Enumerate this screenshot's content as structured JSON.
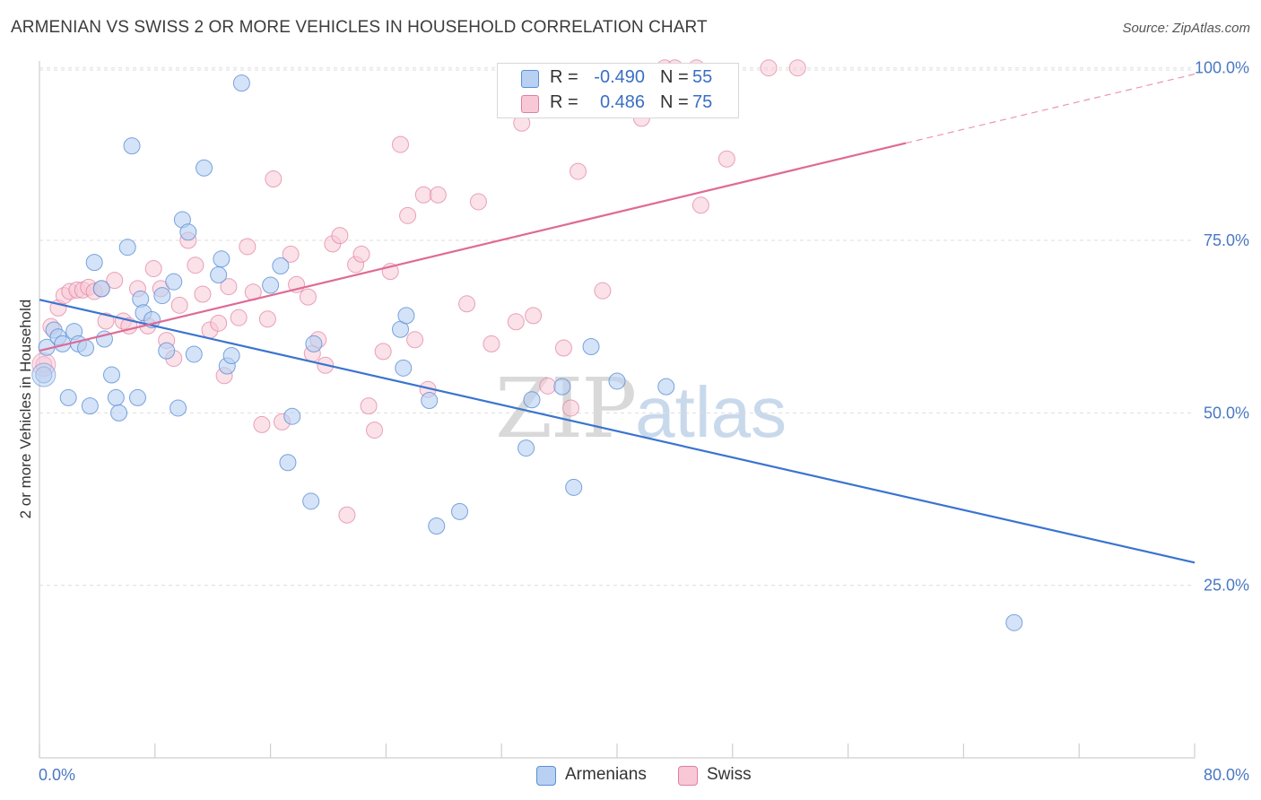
{
  "title": "ARMENIAN VS SWISS 2 OR MORE VEHICLES IN HOUSEHOLD CORRELATION CHART",
  "source": "Source: ZipAtlas.com",
  "watermark": {
    "part1": "ZIP",
    "part2": "atlas"
  },
  "legend": {
    "rows": [
      {
        "r_label": "R =",
        "r_value": "-0.490",
        "n_label": "N =",
        "n_value": "55"
      },
      {
        "r_label": "R =",
        "r_value": "0.486",
        "n_label": "N =",
        "n_value": "75"
      }
    ]
  },
  "bottom_legend": [
    "Armenians",
    "Swiss"
  ],
  "colors": {
    "armenians_fill": "#b8d0f2",
    "armenians_stroke": "#5b8fd6",
    "armenians_line": "#3a74d0",
    "swiss_fill": "#f8c8d6",
    "swiss_stroke": "#e07ea0",
    "swiss_line": "#e06a94",
    "grid": "#dddddd",
    "tick_label": "#4a78c2"
  },
  "chart_data": {
    "type": "scatter",
    "title": "ARMENIAN VS SWISS 2 OR MORE VEHICLES IN HOUSEHOLD CORRELATION CHART",
    "xlabel": "",
    "ylabel": "2 or more Vehicles in Household",
    "xlim": [
      0,
      80
    ],
    "ylim": [
      0,
      101
    ],
    "x_tick_labels": [
      "0.0%",
      "80.0%"
    ],
    "y_ticks": [
      25,
      50,
      75,
      100
    ],
    "y_tick_labels": [
      "25.0%",
      "50.0%",
      "75.0%",
      "100.0%"
    ],
    "grid": true,
    "legend_position": "top-center",
    "series": [
      {
        "name": "Armenians",
        "r": -0.49,
        "n": 55,
        "trend": {
          "x": [
            0,
            80
          ],
          "y": [
            66.4,
            28.3
          ]
        },
        "points": [
          [
            0.3,
            55.5
          ],
          [
            0.5,
            59.5
          ],
          [
            1.0,
            62.0
          ],
          [
            1.3,
            61.0
          ],
          [
            1.6,
            60.0
          ],
          [
            2.0,
            52.2
          ],
          [
            2.4,
            61.8
          ],
          [
            2.7,
            60.0
          ],
          [
            3.2,
            59.4
          ],
          [
            3.5,
            51.0
          ],
          [
            3.8,
            71.8
          ],
          [
            4.3,
            68.0
          ],
          [
            4.5,
            60.7
          ],
          [
            5.0,
            55.5
          ],
          [
            5.3,
            52.2
          ],
          [
            5.5,
            50.0
          ],
          [
            6.1,
            74.0
          ],
          [
            6.4,
            88.7
          ],
          [
            6.8,
            52.2
          ],
          [
            7.0,
            66.5
          ],
          [
            7.2,
            64.5
          ],
          [
            7.8,
            63.5
          ],
          [
            8.5,
            67.0
          ],
          [
            8.8,
            59.0
          ],
          [
            9.3,
            69.0
          ],
          [
            9.6,
            50.7
          ],
          [
            9.9,
            78.0
          ],
          [
            10.3,
            76.2
          ],
          [
            10.7,
            58.5
          ],
          [
            11.4,
            85.5
          ],
          [
            12.4,
            70.0
          ],
          [
            12.6,
            72.3
          ],
          [
            13.0,
            56.8
          ],
          [
            13.3,
            58.3
          ],
          [
            14.0,
            97.8
          ],
          [
            16.0,
            68.5
          ],
          [
            16.7,
            71.3
          ],
          [
            17.2,
            42.8
          ],
          [
            17.5,
            49.5
          ],
          [
            18.8,
            37.2
          ],
          [
            19.0,
            60.0
          ],
          [
            25.0,
            62.1
          ],
          [
            25.2,
            56.5
          ],
          [
            25.4,
            64.1
          ],
          [
            27.0,
            51.8
          ],
          [
            27.5,
            33.6
          ],
          [
            29.1,
            35.7
          ],
          [
            33.7,
            44.9
          ],
          [
            34.1,
            51.9
          ],
          [
            36.2,
            53.8
          ],
          [
            37.0,
            39.2
          ],
          [
            38.2,
            59.6
          ],
          [
            40.0,
            54.6
          ],
          [
            43.4,
            53.8
          ],
          [
            67.5,
            19.6
          ]
        ]
      },
      {
        "name": "Swiss",
        "r": 0.486,
        "n": 75,
        "trend": {
          "x": [
            0,
            60
          ],
          "y": [
            59.0,
            89.1
          ]
        },
        "trend_dashed": {
          "x": [
            60,
            80
          ],
          "y": [
            89.1,
            99.1
          ]
        },
        "points": [
          [
            0.3,
            57.0
          ],
          [
            0.8,
            62.5
          ],
          [
            1.3,
            65.2
          ],
          [
            1.7,
            67.0
          ],
          [
            2.1,
            67.6
          ],
          [
            2.6,
            67.8
          ],
          [
            3.0,
            67.8
          ],
          [
            3.4,
            68.2
          ],
          [
            3.8,
            67.6
          ],
          [
            4.3,
            68.0
          ],
          [
            4.6,
            63.3
          ],
          [
            5.2,
            69.2
          ],
          [
            5.8,
            63.3
          ],
          [
            6.2,
            62.6
          ],
          [
            6.8,
            68.0
          ],
          [
            7.5,
            62.6
          ],
          [
            7.9,
            70.9
          ],
          [
            8.4,
            68.0
          ],
          [
            8.8,
            60.5
          ],
          [
            9.3,
            57.9
          ],
          [
            9.7,
            65.6
          ],
          [
            10.3,
            75.0
          ],
          [
            10.8,
            71.4
          ],
          [
            11.3,
            67.2
          ],
          [
            11.8,
            62.0
          ],
          [
            12.4,
            63.0
          ],
          [
            12.8,
            55.4
          ],
          [
            13.1,
            68.3
          ],
          [
            13.8,
            63.8
          ],
          [
            14.4,
            74.1
          ],
          [
            14.8,
            67.5
          ],
          [
            15.4,
            48.3
          ],
          [
            15.8,
            63.6
          ],
          [
            16.2,
            83.9
          ],
          [
            16.8,
            48.7
          ],
          [
            17.4,
            73.0
          ],
          [
            17.8,
            68.6
          ],
          [
            18.6,
            66.8
          ],
          [
            18.9,
            58.6
          ],
          [
            19.3,
            60.6
          ],
          [
            19.8,
            56.9
          ],
          [
            20.3,
            74.5
          ],
          [
            20.8,
            75.7
          ],
          [
            21.3,
            35.2
          ],
          [
            21.9,
            71.5
          ],
          [
            22.3,
            73.0
          ],
          [
            22.8,
            51.0
          ],
          [
            23.2,
            47.5
          ],
          [
            23.8,
            58.9
          ],
          [
            24.3,
            70.5
          ],
          [
            25.0,
            88.9
          ],
          [
            25.5,
            78.6
          ],
          [
            26.0,
            60.6
          ],
          [
            26.6,
            81.6
          ],
          [
            26.9,
            53.4
          ],
          [
            27.6,
            81.6
          ],
          [
            29.6,
            65.8
          ],
          [
            30.4,
            80.6
          ],
          [
            31.3,
            60.0
          ],
          [
            33.0,
            63.2
          ],
          [
            33.4,
            92.0
          ],
          [
            34.2,
            64.1
          ],
          [
            35.2,
            53.9
          ],
          [
            36.3,
            59.4
          ],
          [
            36.8,
            50.7
          ],
          [
            37.3,
            85.0
          ],
          [
            39.0,
            67.7
          ],
          [
            41.7,
            92.7
          ],
          [
            43.3,
            100.0
          ],
          [
            44.0,
            100.0
          ],
          [
            45.5,
            100.0
          ],
          [
            45.8,
            80.1
          ],
          [
            47.6,
            86.8
          ],
          [
            50.5,
            100.0
          ],
          [
            52.5,
            100.0
          ]
        ]
      }
    ]
  }
}
